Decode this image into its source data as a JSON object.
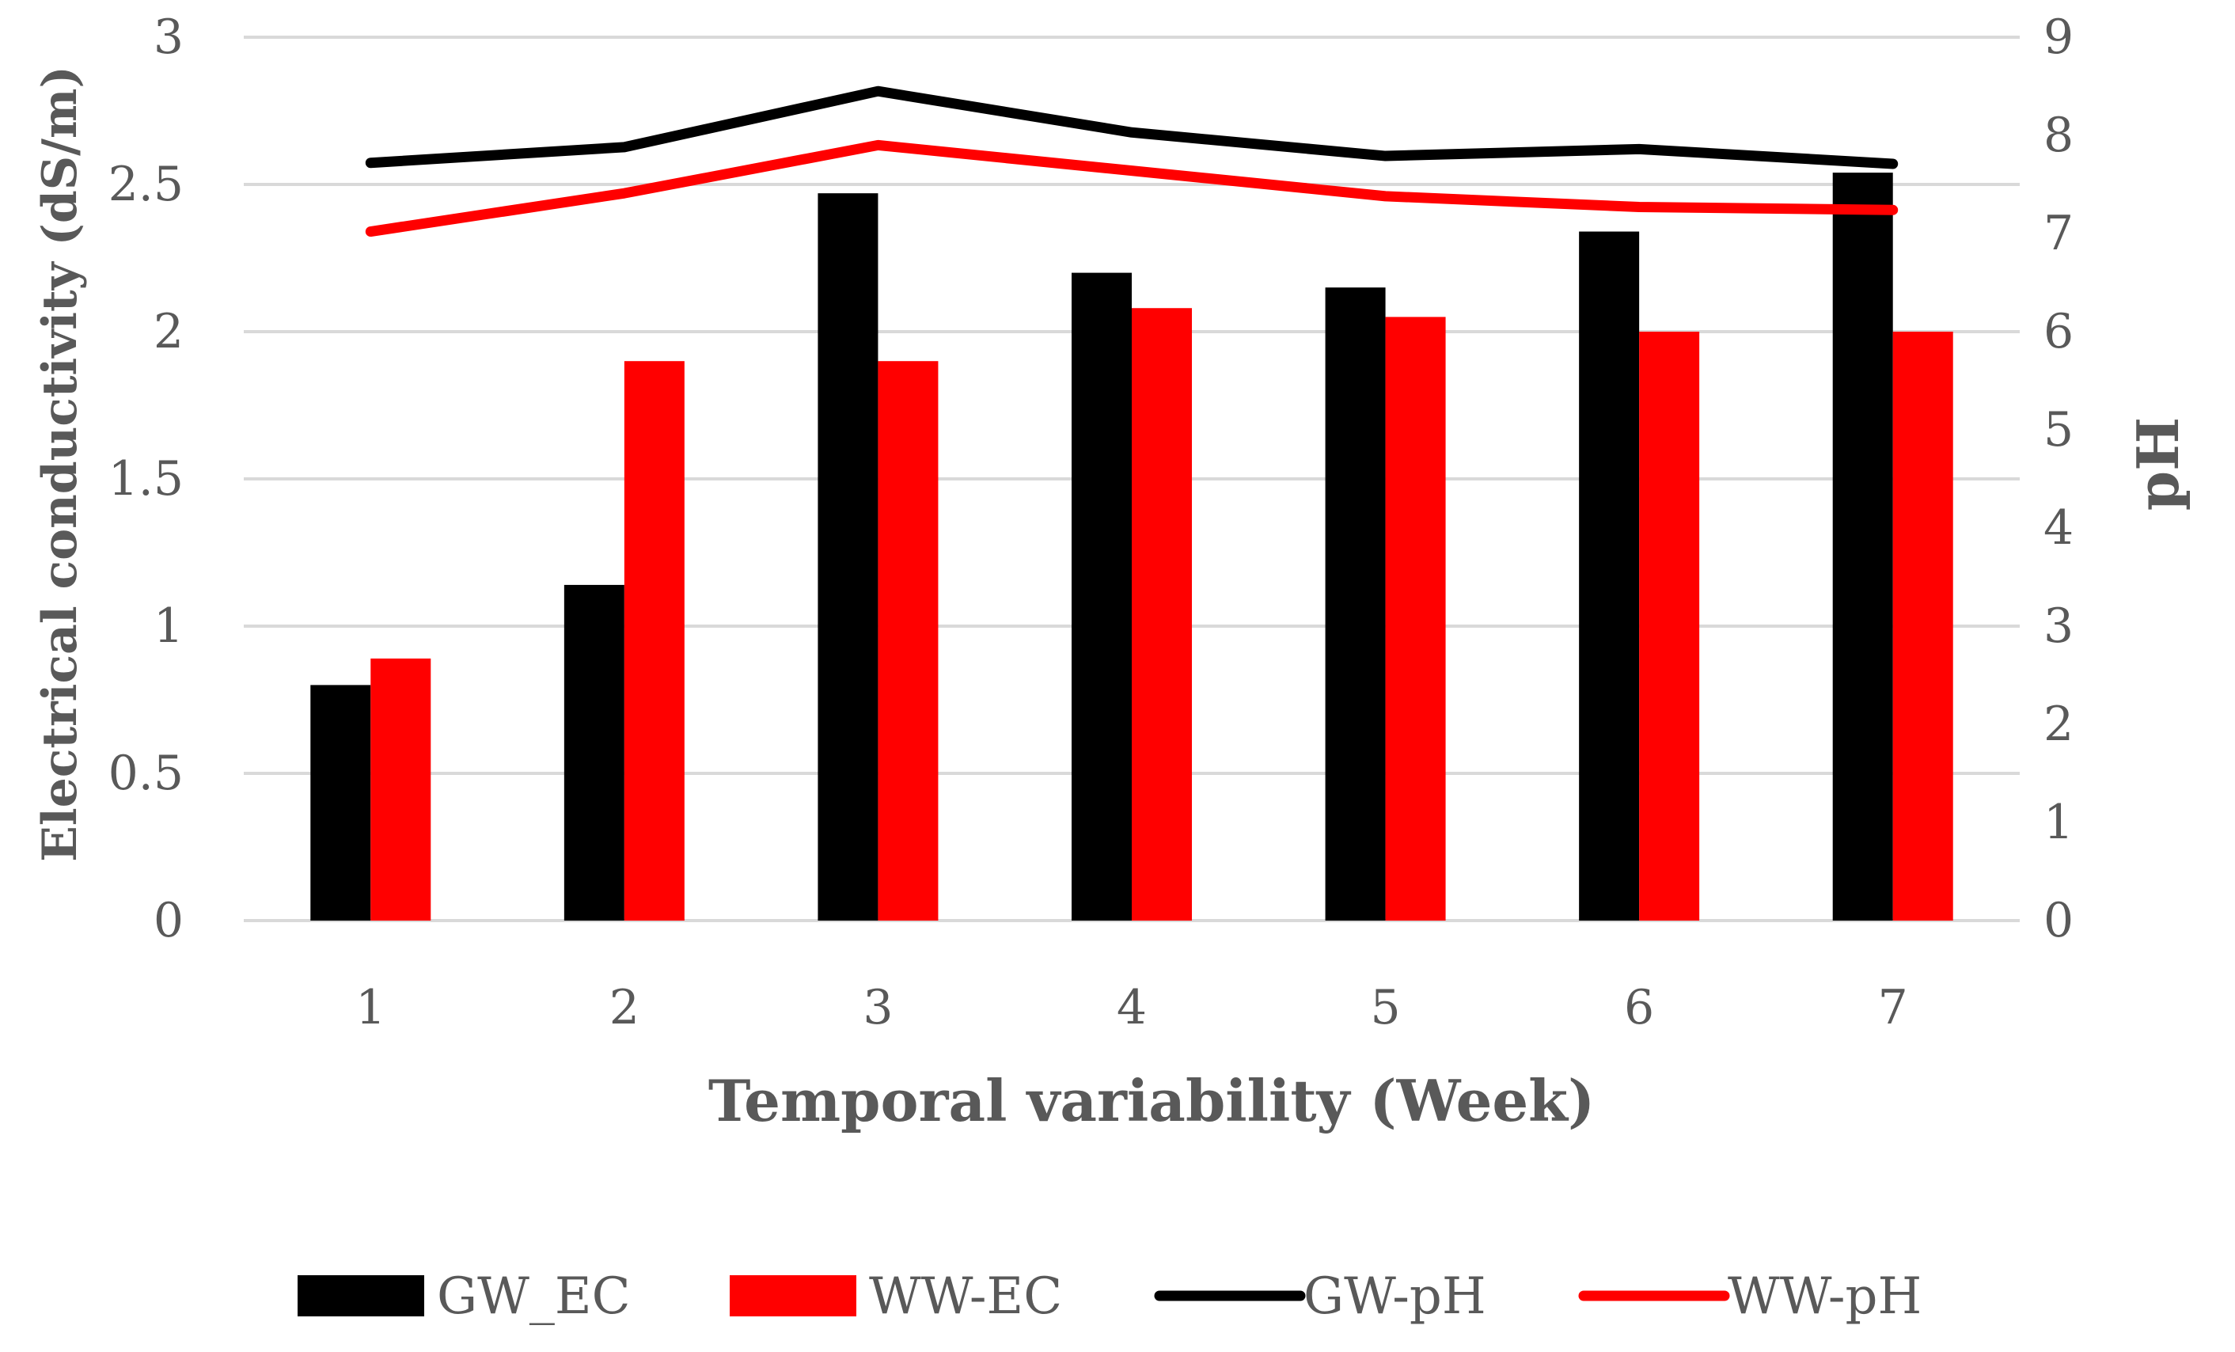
{
  "chart_data": {
    "type": "bar",
    "categories": [
      "1",
      "2",
      "3",
      "4",
      "5",
      "6",
      "7"
    ],
    "xlabel": "Temporal variability (Week)",
    "ylabel": "Electrical  conductivity (dS/m)",
    "y2label": "pH",
    "ylim": [
      0,
      3
    ],
    "y2lim": [
      0,
      9
    ],
    "yticks": [
      "0",
      "0.5",
      "1",
      "1.5",
      "2",
      "2.5",
      "3"
    ],
    "y2ticks": [
      "0",
      "1",
      "2",
      "3",
      "4",
      "5",
      "6",
      "7",
      "8",
      "9"
    ],
    "grid": true,
    "legend_position": "bottom",
    "series": [
      {
        "name": "GW_EC",
        "kind": "bar",
        "axis": "left",
        "color": "#000000",
        "values": [
          0.8,
          1.14,
          2.47,
          2.2,
          2.15,
          2.34,
          2.54
        ]
      },
      {
        "name": "WW-EC",
        "kind": "bar",
        "axis": "left",
        "color": "#ff0000",
        "values": [
          0.89,
          1.9,
          1.9,
          2.08,
          2.05,
          2.0,
          2.0
        ]
      },
      {
        "name": "GW-pH",
        "kind": "line",
        "axis": "right",
        "color": "#000000",
        "values": [
          7.72,
          7.88,
          8.45,
          8.03,
          7.79,
          7.86,
          7.71
        ]
      },
      {
        "name": "WW-pH",
        "kind": "line",
        "axis": "right",
        "color": "#ff0000",
        "values": [
          7.02,
          7.41,
          7.9,
          7.64,
          7.38,
          7.27,
          7.24
        ]
      }
    ]
  }
}
